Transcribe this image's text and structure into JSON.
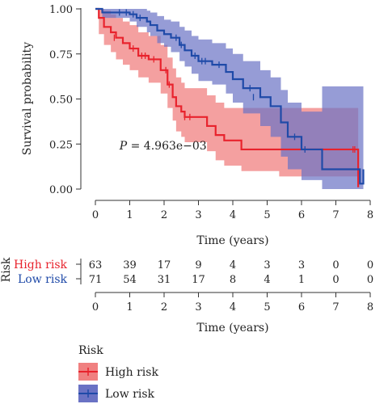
{
  "chart_data": [
    {
      "type": "line",
      "subtype": "kaplan-meier survival curve with confidence bands",
      "xlabel": "Time (years)",
      "ylabel": "Survival probability",
      "xlim": [
        -0.1,
        8.1
      ],
      "ylim": [
        -0.05,
        1.05
      ],
      "x_ticks": [
        0,
        1,
        2,
        3,
        4,
        5,
        6,
        7,
        8
      ],
      "y_ticks": [
        0.0,
        0.25,
        0.5,
        0.75,
        1.0
      ],
      "y_tick_labels": [
        "0.00",
        "0.25",
        "0.50",
        "0.75",
        "1.00"
      ],
      "annotation": {
        "prefix": "P",
        "text": " = 4.963e−03",
        "x": 0.7,
        "y": 0.22
      },
      "grid": false,
      "series": [
        {
          "name": "High risk",
          "color": "#e8232d",
          "band_color": "#f08080",
          "x": [
            0,
            0.1,
            0.25,
            0.45,
            0.6,
            0.8,
            1.0,
            1.25,
            1.55,
            1.9,
            2.1,
            2.25,
            2.35,
            2.5,
            2.6,
            3.25,
            3.5,
            3.75,
            4.25,
            5.35,
            7.6,
            7.65
          ],
          "y": [
            1.0,
            0.95,
            0.9,
            0.87,
            0.84,
            0.81,
            0.78,
            0.74,
            0.72,
            0.66,
            0.58,
            0.51,
            0.46,
            0.43,
            0.4,
            0.35,
            0.3,
            0.27,
            0.22,
            0.22,
            0.22,
            0.01
          ],
          "lower": [
            1.0,
            0.86,
            0.8,
            0.76,
            0.72,
            0.69,
            0.66,
            0.62,
            0.59,
            0.53,
            0.45,
            0.38,
            0.32,
            0.29,
            0.26,
            0.21,
            0.16,
            0.13,
            0.1,
            0.07,
            0.07,
            0.07
          ],
          "upper": [
            1.0,
            1.0,
            0.99,
            0.97,
            0.95,
            0.93,
            0.91,
            0.87,
            0.85,
            0.8,
            0.73,
            0.67,
            0.62,
            0.59,
            0.56,
            0.52,
            0.48,
            0.45,
            0.45,
            0.45,
            0.45,
            0.45
          ],
          "censor_x": [
            0.55,
            1.1,
            1.35,
            1.45,
            1.7,
            2.05,
            2.15,
            2.6,
            2.75,
            7.5,
            7.55
          ],
          "censor_y": [
            0.84,
            0.78,
            0.74,
            0.74,
            0.72,
            0.66,
            0.58,
            0.4,
            0.4,
            0.22,
            0.22
          ]
        },
        {
          "name": "Low risk",
          "color": "#1f4aa8",
          "band_color": "#6a72c4",
          "x": [
            0,
            0.2,
            0.5,
            1.0,
            1.2,
            1.5,
            1.6,
            1.8,
            2.0,
            2.2,
            2.45,
            2.6,
            2.8,
            3.0,
            3.4,
            3.8,
            4.0,
            4.3,
            4.8,
            5.1,
            5.4,
            5.6,
            6.0,
            6.6,
            7.7,
            7.8
          ],
          "y": [
            1.0,
            0.98,
            0.98,
            0.97,
            0.95,
            0.93,
            0.91,
            0.88,
            0.86,
            0.84,
            0.8,
            0.77,
            0.74,
            0.71,
            0.69,
            0.65,
            0.61,
            0.56,
            0.51,
            0.46,
            0.37,
            0.29,
            0.22,
            0.11,
            0.03,
            0.11
          ],
          "lower": [
            1.0,
            0.95,
            0.95,
            0.93,
            0.9,
            0.87,
            0.85,
            0.81,
            0.79,
            0.76,
            0.71,
            0.68,
            0.64,
            0.6,
            0.58,
            0.53,
            0.48,
            0.42,
            0.35,
            0.29,
            0.18,
            0.11,
            0.05,
            0.0,
            0.0,
            0.0
          ],
          "upper": [
            1.0,
            1.0,
            1.0,
            1.0,
            1.0,
            0.99,
            0.98,
            0.96,
            0.94,
            0.93,
            0.9,
            0.88,
            0.85,
            0.83,
            0.81,
            0.78,
            0.75,
            0.71,
            0.66,
            0.62,
            0.55,
            0.48,
            0.43,
            0.57,
            0.57,
            0.57
          ],
          "censor_x": [
            0.7,
            0.9,
            1.1,
            1.3,
            2.35,
            2.5,
            2.9,
            3.1,
            3.2,
            3.6,
            4.5,
            4.6,
            5.8,
            6.1
          ],
          "censor_y": [
            0.98,
            0.98,
            0.97,
            0.95,
            0.84,
            0.8,
            0.74,
            0.71,
            0.71,
            0.69,
            0.56,
            0.51,
            0.29,
            0.22
          ]
        }
      ]
    },
    {
      "type": "table",
      "title": "Risk",
      "xlabel": "Time (years)",
      "x_ticks": [
        0,
        1,
        2,
        3,
        4,
        5,
        6,
        7,
        8
      ],
      "rows": [
        {
          "name": "High risk",
          "color": "#e8232d",
          "values": [
            63,
            39,
            17,
            9,
            4,
            3,
            3,
            0,
            0
          ]
        },
        {
          "name": "Low risk",
          "color": "#1f4aa8",
          "values": [
            71,
            54,
            31,
            17,
            8,
            4,
            1,
            0,
            0
          ]
        }
      ]
    }
  ],
  "legend": {
    "title": "Risk",
    "items": [
      {
        "label": "High risk",
        "fill": "#f08080",
        "stroke": "#e8232d"
      },
      {
        "label": "Low risk",
        "fill": "#6a72c4",
        "stroke": "#1f4aa8"
      }
    ]
  }
}
